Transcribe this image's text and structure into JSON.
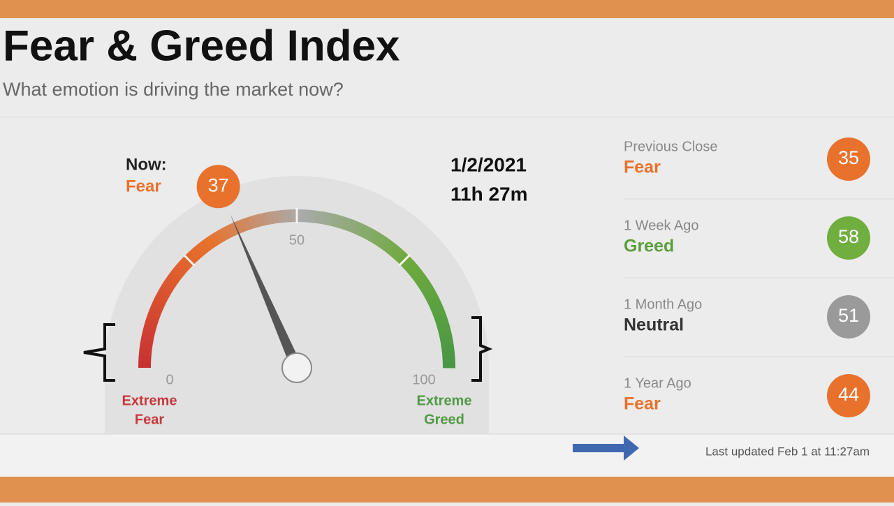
{
  "header": {
    "title": "Fear & Greed Index",
    "subtitle": "What emotion is driving the market now?"
  },
  "gauge": {
    "now_label": "Now:",
    "rating": "Fear",
    "rating_color": "#e8722c",
    "value": 37,
    "value_color": "#e8722c",
    "scale_min": 0,
    "scale_mid": 50,
    "scale_max": 100,
    "min_label": [
      "Extreme",
      "Fear"
    ],
    "min_label_color": "#c8383a",
    "max_label": [
      "Extreme",
      "Greed"
    ],
    "max_label_color": "#4f9a46",
    "date": "1/2/2021",
    "time": "11h 27m"
  },
  "history": [
    {
      "label": "Previous Close",
      "rating": "Fear",
      "rating_color": "#e8722c",
      "value": 35,
      "color": "#e8722c"
    },
    {
      "label": "1 Week Ago",
      "rating": "Greed",
      "rating_color": "#5a9e3c",
      "value": 58,
      "color": "#6fae3f"
    },
    {
      "label": "1 Month Ago",
      "rating": "Neutral",
      "rating_color": "#333333",
      "value": 51,
      "color": "#9a9a9a"
    },
    {
      "label": "1 Year Ago",
      "rating": "Fear",
      "rating_color": "#e8722c",
      "value": 44,
      "color": "#e8722c"
    }
  ],
  "footer": {
    "updated": "Last updated Feb 1 at 11:27am"
  }
}
